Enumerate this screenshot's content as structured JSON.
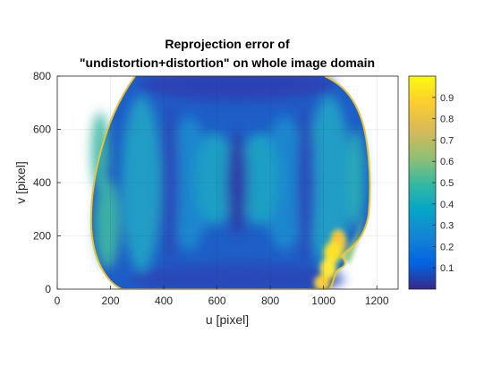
{
  "chart_data": {
    "type": "heatmap",
    "title_lines": [
      "Reprojection error of",
      "\"undistortion+distortion\" on whole image domain"
    ],
    "xlabel": "u [pixel]",
    "ylabel": "v [pixel]",
    "xlim": [
      0,
      1280
    ],
    "ylim": [
      0,
      800
    ],
    "xticks": [
      0,
      200,
      400,
      600,
      800,
      1000,
      1200
    ],
    "yticks": [
      0,
      200,
      400,
      600,
      800
    ],
    "colorbar": {
      "range": [
        0,
        1
      ],
      "ticks": [
        0.1,
        0.2,
        0.3,
        0.4,
        0.5,
        0.6,
        0.7,
        0.8,
        0.9
      ],
      "colormap": "parula"
    },
    "grid": true,
    "valid_region_u_range": [
      125,
      1170
    ],
    "valid_region_v_range": [
      0,
      800
    ],
    "max_error_location": {
      "u": 1080,
      "v": 120
    }
  }
}
